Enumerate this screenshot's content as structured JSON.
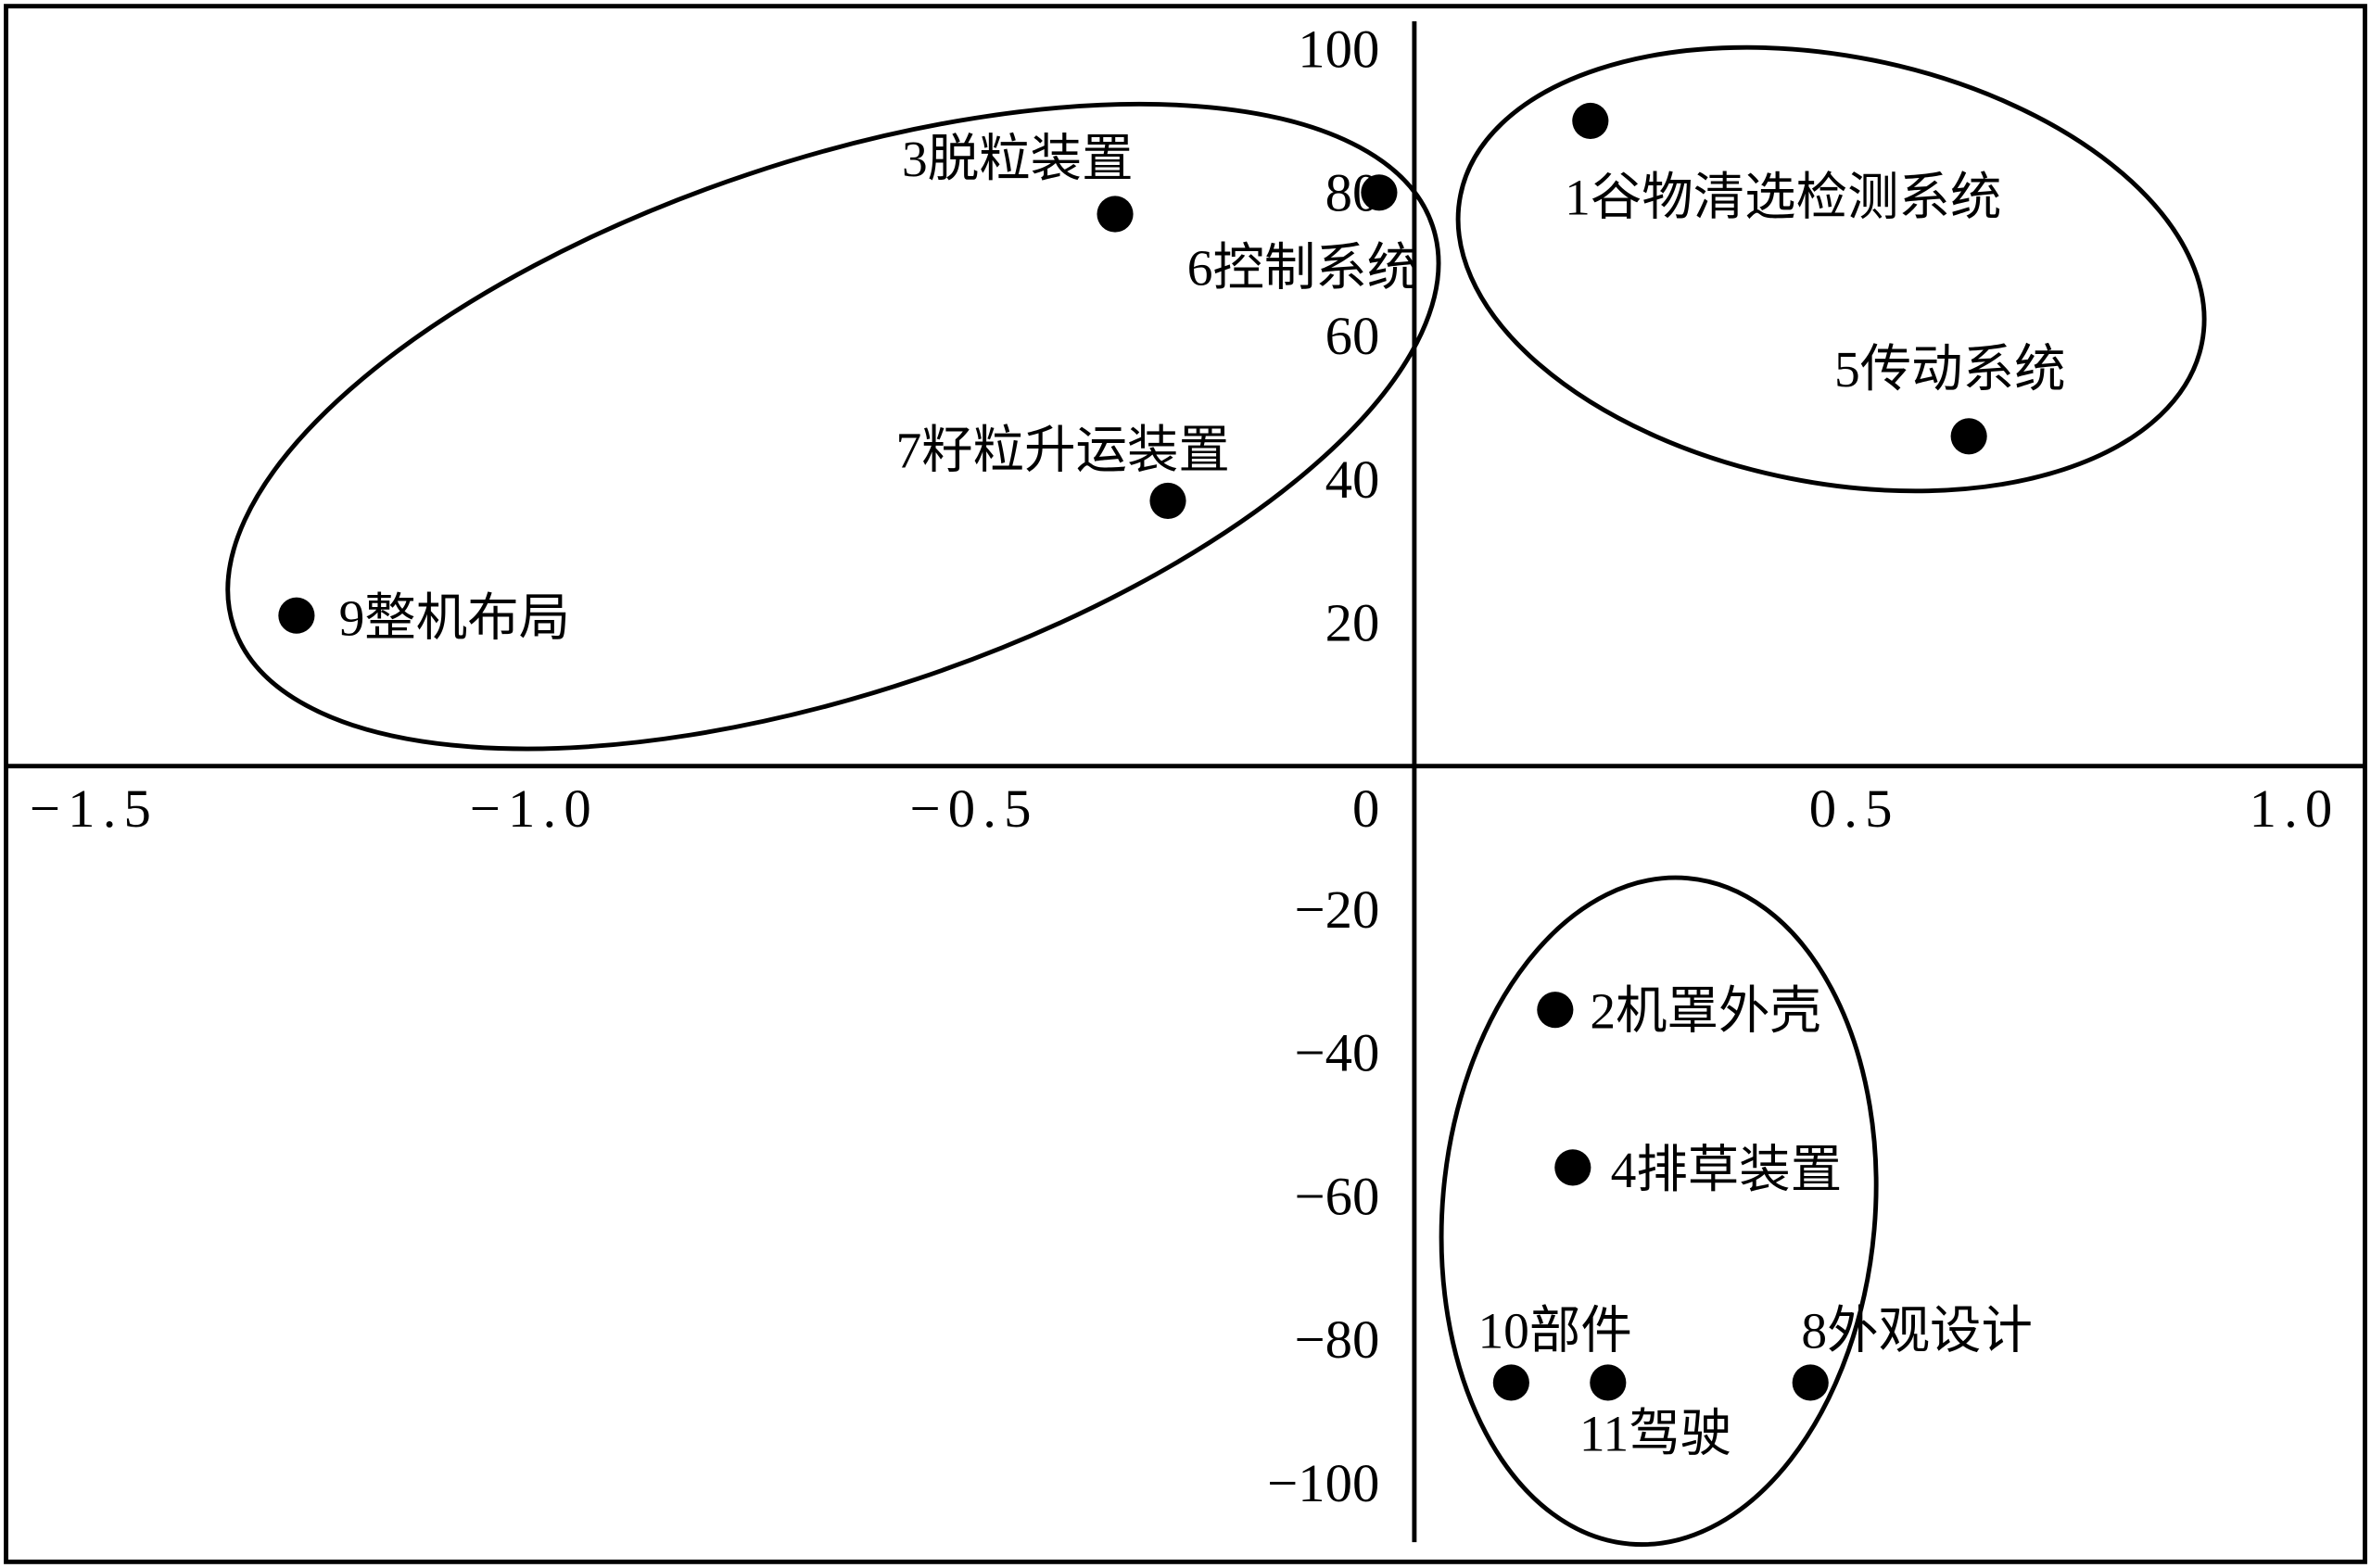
{
  "chart_data": {
    "type": "scatter",
    "xlim": [
      -1.6,
      1.08
    ],
    "ylim": [
      -111,
      106
    ],
    "grid": false,
    "axes_cross_at_origin": true,
    "x_ticks": {
      "values": [
        -1.5,
        -1.0,
        -0.5,
        0,
        0.5,
        1.0
      ],
      "labels": [
        "−1.5",
        "−1.0",
        "−0.5",
        "0",
        "0.5",
        "1.0"
      ]
    },
    "y_ticks": {
      "values": [
        100,
        80,
        60,
        40,
        20,
        -20,
        -40,
        -60,
        -80,
        -100
      ],
      "labels": [
        "100",
        "80",
        "60",
        "40",
        "20",
        "−20",
        "−40",
        "−60",
        "−80",
        "−100"
      ]
    },
    "points": [
      {
        "id": 1,
        "label": "1谷物清选检测系统",
        "x": 0.2,
        "y": 90
      },
      {
        "id": 2,
        "label": "2机罩外壳",
        "x": 0.16,
        "y": -34
      },
      {
        "id": 3,
        "label": "3脱粒装置",
        "x": -0.34,
        "y": 77
      },
      {
        "id": 4,
        "label": "4排草装置",
        "x": 0.18,
        "y": -56
      },
      {
        "id": 5,
        "label": "5传动系统",
        "x": 0.63,
        "y": 46
      },
      {
        "id": 6,
        "label": "6控制系统",
        "x": -0.04,
        "y": 80
      },
      {
        "id": 7,
        "label": "7籽粒升运装置",
        "x": -0.28,
        "y": 37
      },
      {
        "id": 8,
        "label": "8外观设计",
        "x": 0.45,
        "y": -86
      },
      {
        "id": 9,
        "label": "9整机布局",
        "x": -1.27,
        "y": 21
      },
      {
        "id": 10,
        "label": "10部件",
        "x": 0.11,
        "y": -86
      },
      {
        "id": 11,
        "label": "11驾驶",
        "x": 0.22,
        "y": -86
      }
    ],
    "clusters": [
      [
        3,
        6,
        7,
        9
      ],
      [
        1,
        5
      ],
      [
        2,
        4,
        8,
        10,
        11
      ]
    ],
    "colors": {
      "marker": "#000000",
      "line": "#000000",
      "background": "#ffffff"
    }
  }
}
